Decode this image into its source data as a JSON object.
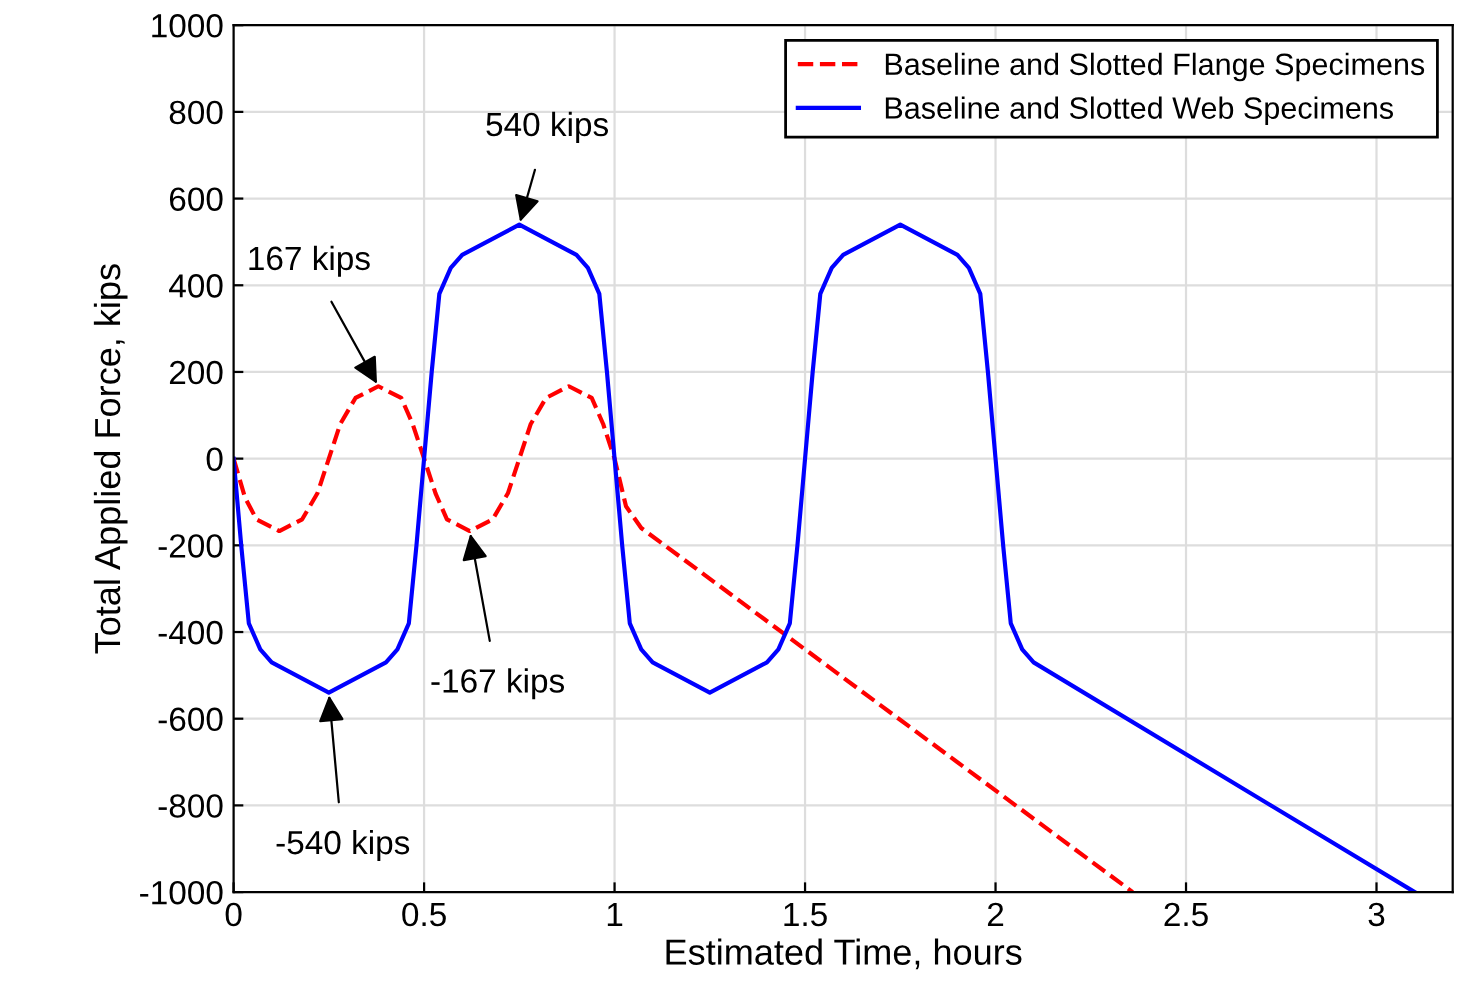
{
  "chart_data": {
    "type": "line",
    "xlabel": "Estimated Time, hours",
    "ylabel": "Total Applied Force, kips",
    "xlim": [
      0,
      3.2
    ],
    "xticks": [
      0,
      0.5,
      1,
      1.5,
      2,
      2.5,
      3
    ],
    "ylim": [
      -1000,
      1000
    ],
    "yticks": [
      -1000,
      -800,
      -600,
      -400,
      -200,
      0,
      200,
      400,
      600,
      800,
      1000
    ],
    "grid": true,
    "legend": "top right",
    "series": [
      {
        "name": "Baseline and Slotted Flange Specimens",
        "color": "#ff0000",
        "line_style": "dashed",
        "x": [
          0,
          0.03,
          0.06,
          0.12,
          0.18,
          0.22,
          0.25,
          0.28,
          0.32,
          0.38,
          0.44,
          0.47,
          0.5,
          0.53,
          0.56,
          0.62,
          0.68,
          0.72,
          0.75,
          0.78,
          0.82,
          0.88,
          0.94,
          0.97,
          1.0,
          1.03,
          1.07,
          2.36
        ],
        "values": [
          0,
          -90,
          -140,
          -167,
          -140,
          -80,
          0,
          80,
          140,
          167,
          140,
          80,
          0,
          -80,
          -140,
          -167,
          -140,
          -80,
          0,
          80,
          140,
          167,
          140,
          80,
          0,
          -110,
          -160,
          -1000
        ]
      },
      {
        "name": "Baseline and Slotted Web Specimens",
        "color": "#0000ff",
        "line_style": "solid",
        "x": [
          0,
          0.02,
          0.04,
          0.07,
          0.1,
          0.25,
          0.4,
          0.43,
          0.46,
          0.48,
          0.5,
          0.52,
          0.54,
          0.57,
          0.6,
          0.75,
          0.9,
          0.93,
          0.96,
          0.98,
          1.0,
          1.02,
          1.04,
          1.07,
          1.1,
          1.25,
          1.4,
          1.43,
          1.46,
          1.48,
          1.5,
          1.52,
          1.54,
          1.57,
          1.6,
          1.75,
          1.9,
          1.93,
          1.96,
          1.98,
          2.0,
          2.02,
          2.04,
          2.07,
          2.1,
          3.1
        ],
        "values": [
          0,
          -200,
          -380,
          -440,
          -470,
          -540,
          -470,
          -440,
          -380,
          -200,
          0,
          200,
          380,
          440,
          470,
          540,
          470,
          440,
          380,
          200,
          0,
          -200,
          -380,
          -440,
          -470,
          -540,
          -470,
          -440,
          -380,
          -200,
          0,
          200,
          380,
          440,
          470,
          540,
          470,
          440,
          380,
          200,
          0,
          -200,
          -380,
          -440,
          -470,
          -1000
        ]
      }
    ],
    "annotations": [
      {
        "text": "540 kips",
        "x": 0.75,
        "y": 540
      },
      {
        "text": "167 kips",
        "x": 0.38,
        "y": 167
      },
      {
        "text": "-167 kips",
        "x": 0.62,
        "y": -167
      },
      {
        "text": "-540 kips",
        "x": 0.25,
        "y": -540
      }
    ]
  }
}
